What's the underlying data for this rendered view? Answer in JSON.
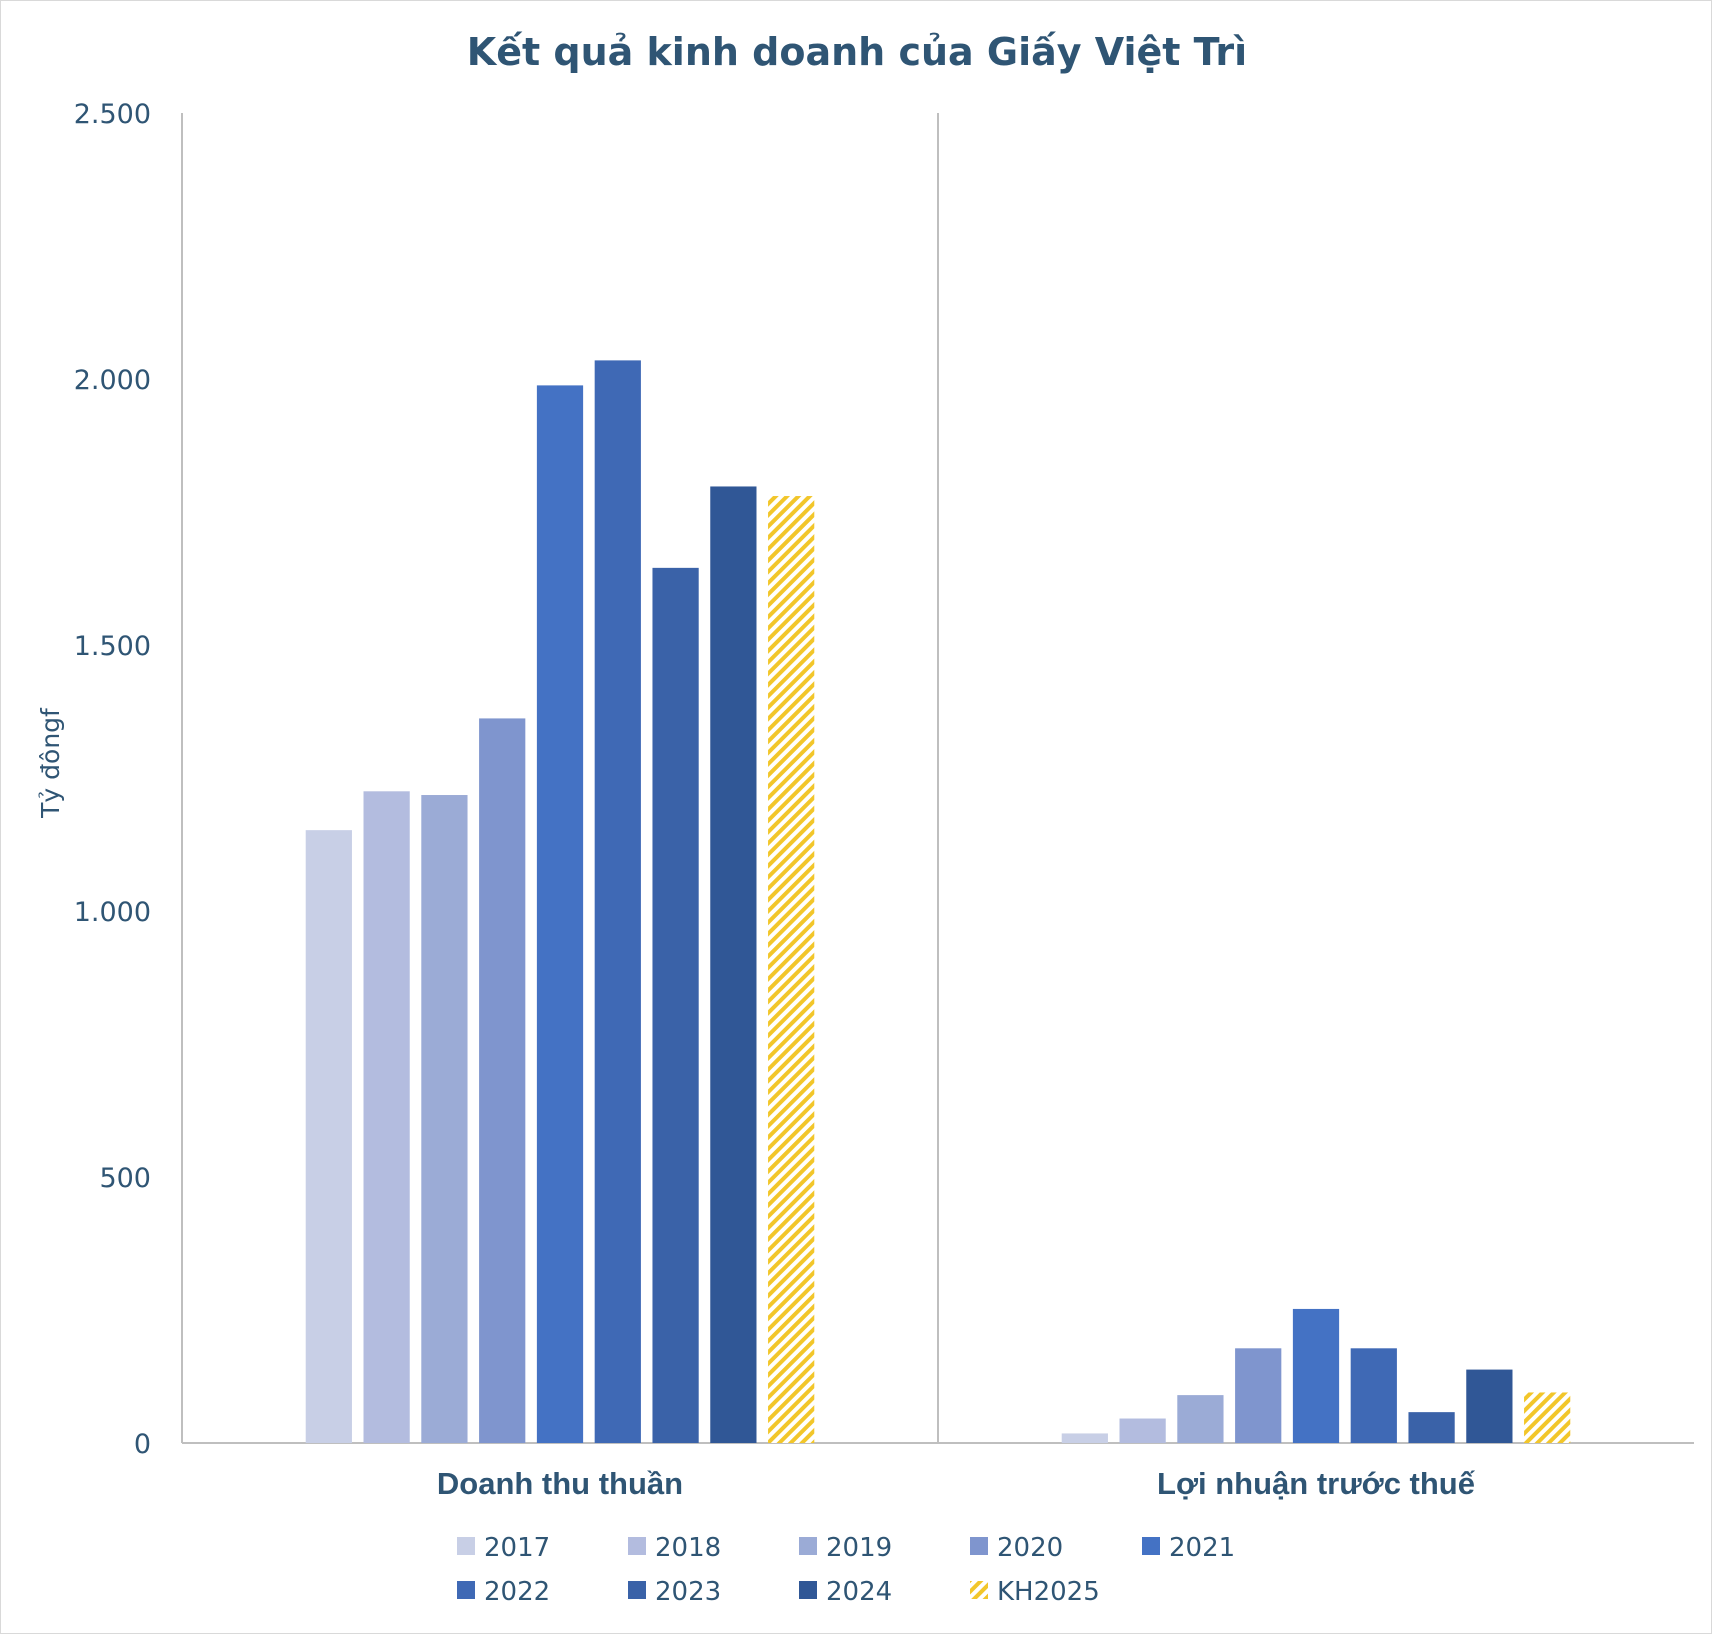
{
  "chart_data": {
    "type": "bar",
    "title": "Kết quả kinh doanh của Giấy Việt Trì",
    "ylabel": "Tỷ đôngf",
    "xlabel": "",
    "ylim": [
      0,
      2500
    ],
    "yticks": [
      0,
      500,
      1000,
      1500,
      2000,
      2500
    ],
    "ytick_labels": [
      "0",
      "500",
      "1.000",
      "1.500",
      "2.000",
      "2.500"
    ],
    "categories": [
      "Doanh thu thuần",
      "Lợi nhuận trước thuế"
    ],
    "series": [
      {
        "name": "2017",
        "color": "#c8cfe6",
        "pattern": "solid",
        "values": [
          1152,
          18
        ]
      },
      {
        "name": "2018",
        "color": "#b3bcdf",
        "pattern": "solid",
        "values": [
          1225,
          46
        ]
      },
      {
        "name": "2019",
        "color": "#9babd6",
        "pattern": "solid",
        "values": [
          1218,
          90
        ]
      },
      {
        "name": "2020",
        "color": "#7f95ce",
        "pattern": "solid",
        "values": [
          1362,
          178
        ]
      },
      {
        "name": "2021",
        "color": "#4472c4",
        "pattern": "solid",
        "values": [
          1988,
          252
        ]
      },
      {
        "name": "2022",
        "color": "#3f69b5",
        "pattern": "solid",
        "values": [
          2035,
          178
        ]
      },
      {
        "name": "2023",
        "color": "#3a62a8",
        "pattern": "solid",
        "values": [
          1645,
          58
        ]
      },
      {
        "name": "2024",
        "color": "#305796",
        "pattern": "solid",
        "values": [
          1798,
          138
        ]
      },
      {
        "name": "KH2025",
        "color": "#f2c62a",
        "pattern": "hatch",
        "values": [
          1780,
          95
        ]
      }
    ],
    "grid": false,
    "category_separator": true,
    "legend_position": "bottom"
  }
}
